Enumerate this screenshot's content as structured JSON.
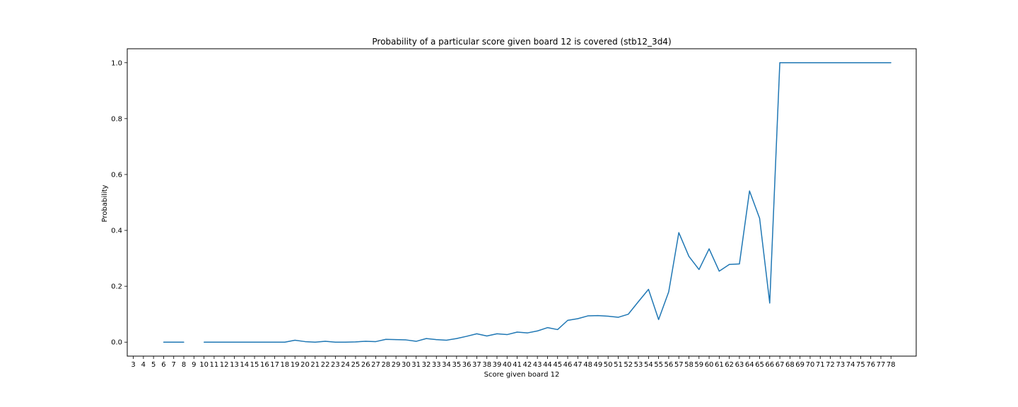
{
  "chart_data": {
    "type": "line",
    "title": "Probability of a particular score given board 12 is covered (stb12_3d4)",
    "xlabel": "Score given board 12",
    "ylabel": "Probability",
    "x_ticks": [
      3,
      4,
      5,
      6,
      7,
      8,
      9,
      10,
      11,
      12,
      13,
      14,
      15,
      16,
      17,
      18,
      19,
      20,
      21,
      22,
      23,
      24,
      25,
      26,
      27,
      28,
      29,
      30,
      31,
      32,
      33,
      34,
      35,
      36,
      37,
      38,
      39,
      40,
      41,
      42,
      43,
      44,
      45,
      46,
      47,
      48,
      49,
      50,
      51,
      52,
      53,
      54,
      55,
      56,
      57,
      58,
      59,
      60,
      61,
      62,
      63,
      64,
      65,
      66,
      67,
      68,
      69,
      70,
      71,
      72,
      73,
      74,
      75,
      76,
      77,
      78
    ],
    "y_ticks": [
      "0.0",
      "0.2",
      "0.4",
      "0.6",
      "0.8",
      "1.0"
    ],
    "xlim": [
      2.4,
      80.5
    ],
    "ylim": [
      -0.05,
      1.05
    ],
    "grid": false,
    "colors": {
      "line": "#1f77b4",
      "axes": "#000000",
      "background": "#ffffff"
    },
    "series": [
      {
        "x": [
          3,
          4,
          5,
          6,
          7,
          8,
          9,
          10,
          11,
          12,
          13,
          14,
          15,
          16,
          17,
          18,
          19,
          20,
          21,
          22,
          23,
          24,
          25,
          26,
          27,
          28,
          29,
          30,
          31,
          32,
          33,
          34,
          35,
          36,
          37,
          38,
          39,
          40,
          41,
          42,
          43,
          44,
          45,
          46,
          47,
          48,
          49,
          50,
          51,
          52,
          53,
          54,
          55,
          56,
          57,
          58,
          59,
          60,
          61,
          62,
          63,
          64,
          65,
          66,
          67,
          68,
          69,
          70,
          71,
          72,
          73,
          74,
          75,
          76,
          77,
          78
        ],
        "y": [
          null,
          null,
          null,
          0.0,
          0.0,
          0.0,
          null,
          0.0,
          0.0,
          0.0,
          0.0,
          0.0,
          0.0,
          0.0,
          0.0,
          0.0,
          0.007,
          0.002,
          0.0,
          0.003,
          0.0,
          0.0,
          0.001,
          0.003,
          0.002,
          0.01,
          0.009,
          0.008,
          0.003,
          0.013,
          0.009,
          0.007,
          0.013,
          0.021,
          0.03,
          0.022,
          0.03,
          0.027,
          0.036,
          0.033,
          0.04,
          0.052,
          0.045,
          0.078,
          0.084,
          0.094,
          0.095,
          0.093,
          0.089,
          0.1,
          0.145,
          0.189,
          0.081,
          0.18,
          0.392,
          0.307,
          0.26,
          0.334,
          0.254,
          0.278,
          0.28,
          0.541,
          0.443,
          0.14,
          1.0,
          1.0,
          1.0,
          1.0,
          1.0,
          1.0,
          1.0,
          1.0,
          1.0,
          1.0,
          1.0,
          1.0
        ]
      }
    ]
  }
}
